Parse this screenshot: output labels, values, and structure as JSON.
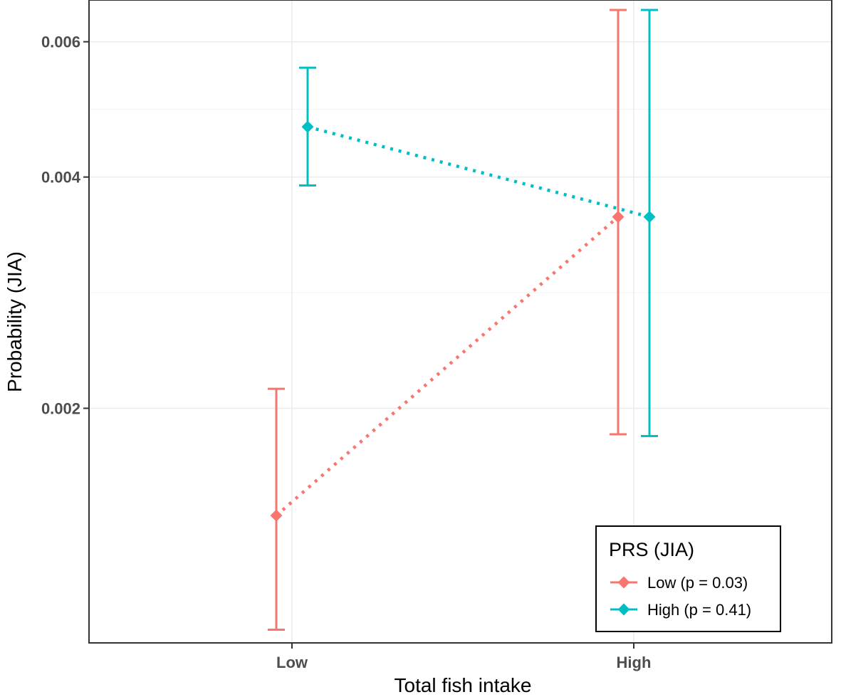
{
  "chart_data": {
    "type": "line",
    "title": "",
    "xlabel": "Total fish intake",
    "ylabel": "Probability (JIA)",
    "y_scale": "log",
    "ylim": [
      0.00099,
      0.0068
    ],
    "yticks": [
      0.002,
      0.004,
      0.006
    ],
    "ytick_labels": [
      "0.002",
      "0.004",
      "0.006"
    ],
    "categories": [
      "Low",
      "High"
    ],
    "grid": true,
    "legend": {
      "title": "PRS (JIA)",
      "position": "bottom-right"
    },
    "series": [
      {
        "name": "Low (p = 0.03)",
        "color": "#F8766D",
        "values": [
          0.00145,
          0.00355
        ],
        "lower": [
          0.00103,
          0.00185
        ],
        "upper": [
          0.00212,
          0.0066
        ]
      },
      {
        "name": "High (p = 0.41)",
        "color": "#00BFC4",
        "values": [
          0.00465,
          0.00355
        ],
        "lower": [
          0.0039,
          0.00184
        ],
        "upper": [
          0.00555,
          0.0066
        ]
      }
    ]
  }
}
